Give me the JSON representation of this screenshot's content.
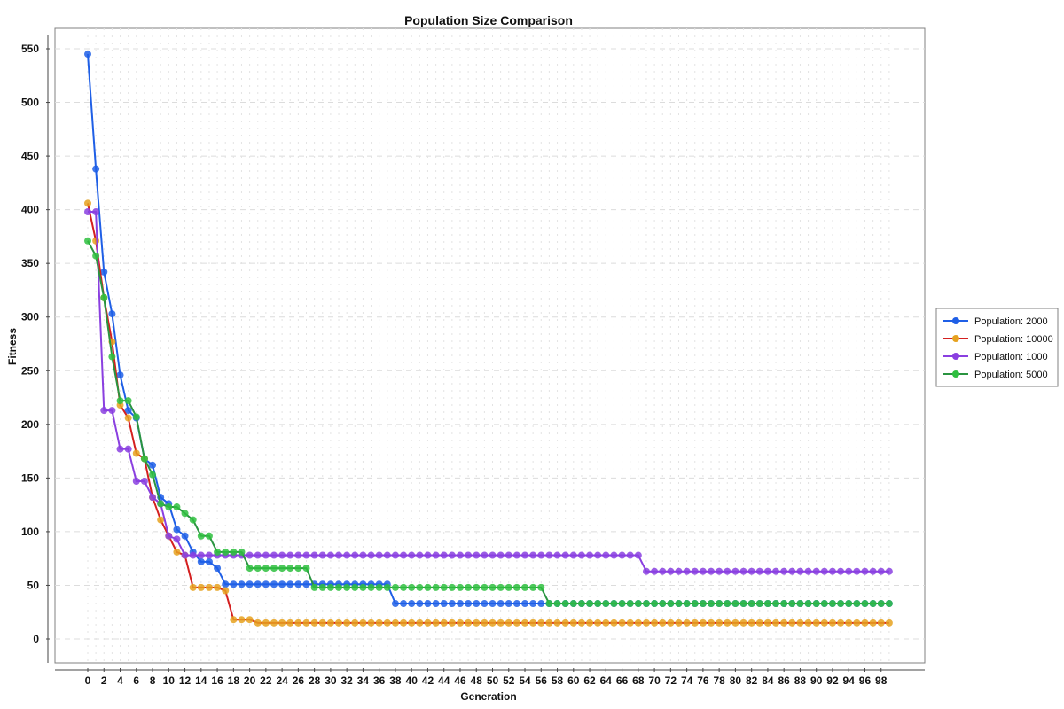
{
  "chart_data": {
    "type": "line",
    "title": "Population Size Comparison",
    "xlabel": "Generation",
    "ylabel": "Fitness",
    "xlim": [
      0,
      99
    ],
    "ylim": [
      0,
      550
    ],
    "x_tick_labels": [
      "0",
      "2",
      "4",
      "6",
      "8",
      "10",
      "12",
      "14",
      "16",
      "18",
      "20",
      "22",
      "24",
      "26",
      "28",
      "30",
      "32",
      "34",
      "36",
      "38",
      "40",
      "42",
      "44",
      "46",
      "48",
      "50",
      "52",
      "54",
      "56",
      "58",
      "60",
      "62",
      "64",
      "66",
      "68",
      "70",
      "72",
      "74",
      "76",
      "78",
      "80",
      "82",
      "84",
      "86",
      "88",
      "90",
      "92",
      "94",
      "96",
      "98"
    ],
    "y_tick_labels": [
      "0",
      "50",
      "100",
      "150",
      "200",
      "250",
      "300",
      "350",
      "400",
      "450",
      "500",
      "550"
    ],
    "grid": true,
    "legend_position": "right",
    "series": [
      {
        "name": "Population: 2000",
        "color": "#1f5fe6",
        "segments": [
          [
            0,
            545
          ],
          [
            1,
            438
          ],
          [
            2,
            342
          ],
          [
            3,
            303
          ],
          [
            4,
            246
          ],
          [
            5,
            213
          ],
          [
            6,
            206
          ],
          [
            7,
            168
          ],
          [
            8,
            162
          ],
          [
            9,
            132
          ],
          [
            10,
            126
          ],
          [
            11,
            102
          ],
          [
            12,
            96
          ],
          [
            13,
            81
          ],
          [
            14,
            72
          ],
          [
            15,
            72
          ],
          [
            16,
            66
          ],
          [
            17,
            51
          ],
          [
            37,
            51
          ],
          [
            38,
            33
          ],
          [
            99,
            33
          ]
        ]
      },
      {
        "name": "Population: 10000",
        "color": "#e6a21f",
        "line_color": "#d42020",
        "segments": [
          [
            0,
            406
          ],
          [
            1,
            371
          ],
          [
            2,
            318
          ],
          [
            3,
            277
          ],
          [
            4,
            218
          ],
          [
            5,
            206
          ],
          [
            6,
            173
          ],
          [
            7,
            168
          ],
          [
            8,
            132
          ],
          [
            9,
            111
          ],
          [
            10,
            96
          ],
          [
            11,
            81
          ],
          [
            12,
            78
          ],
          [
            13,
            48
          ],
          [
            16,
            48
          ],
          [
            17,
            45
          ],
          [
            18,
            18
          ],
          [
            20,
            18
          ],
          [
            21,
            15
          ],
          [
            99,
            15
          ]
        ]
      },
      {
        "name": "Population: 1000",
        "color": "#8a3fe0",
        "segments": [
          [
            0,
            398
          ],
          [
            1,
            398
          ],
          [
            2,
            213
          ],
          [
            3,
            213
          ],
          [
            4,
            177
          ],
          [
            5,
            177
          ],
          [
            6,
            147
          ],
          [
            7,
            147
          ],
          [
            8,
            132
          ],
          [
            9,
            126
          ],
          [
            10,
            96
          ],
          [
            11,
            93
          ],
          [
            12,
            78
          ],
          [
            68,
            78
          ],
          [
            69,
            63
          ],
          [
            99,
            63
          ]
        ]
      },
      {
        "name": "Population: 5000",
        "color": "#2fbf3f",
        "line_color": "#2a9440",
        "segments": [
          [
            0,
            371
          ],
          [
            1,
            357
          ],
          [
            2,
            318
          ],
          [
            3,
            263
          ],
          [
            4,
            222
          ],
          [
            5,
            222
          ],
          [
            6,
            207
          ],
          [
            7,
            168
          ],
          [
            8,
            153
          ],
          [
            9,
            126
          ],
          [
            10,
            123
          ],
          [
            11,
            123
          ],
          [
            12,
            117
          ],
          [
            13,
            111
          ],
          [
            14,
            96
          ],
          [
            15,
            96
          ],
          [
            16,
            81
          ],
          [
            19,
            81
          ],
          [
            20,
            66
          ],
          [
            27,
            66
          ],
          [
            28,
            48
          ],
          [
            56,
            48
          ],
          [
            57,
            33
          ],
          [
            99,
            33
          ]
        ]
      }
    ]
  }
}
